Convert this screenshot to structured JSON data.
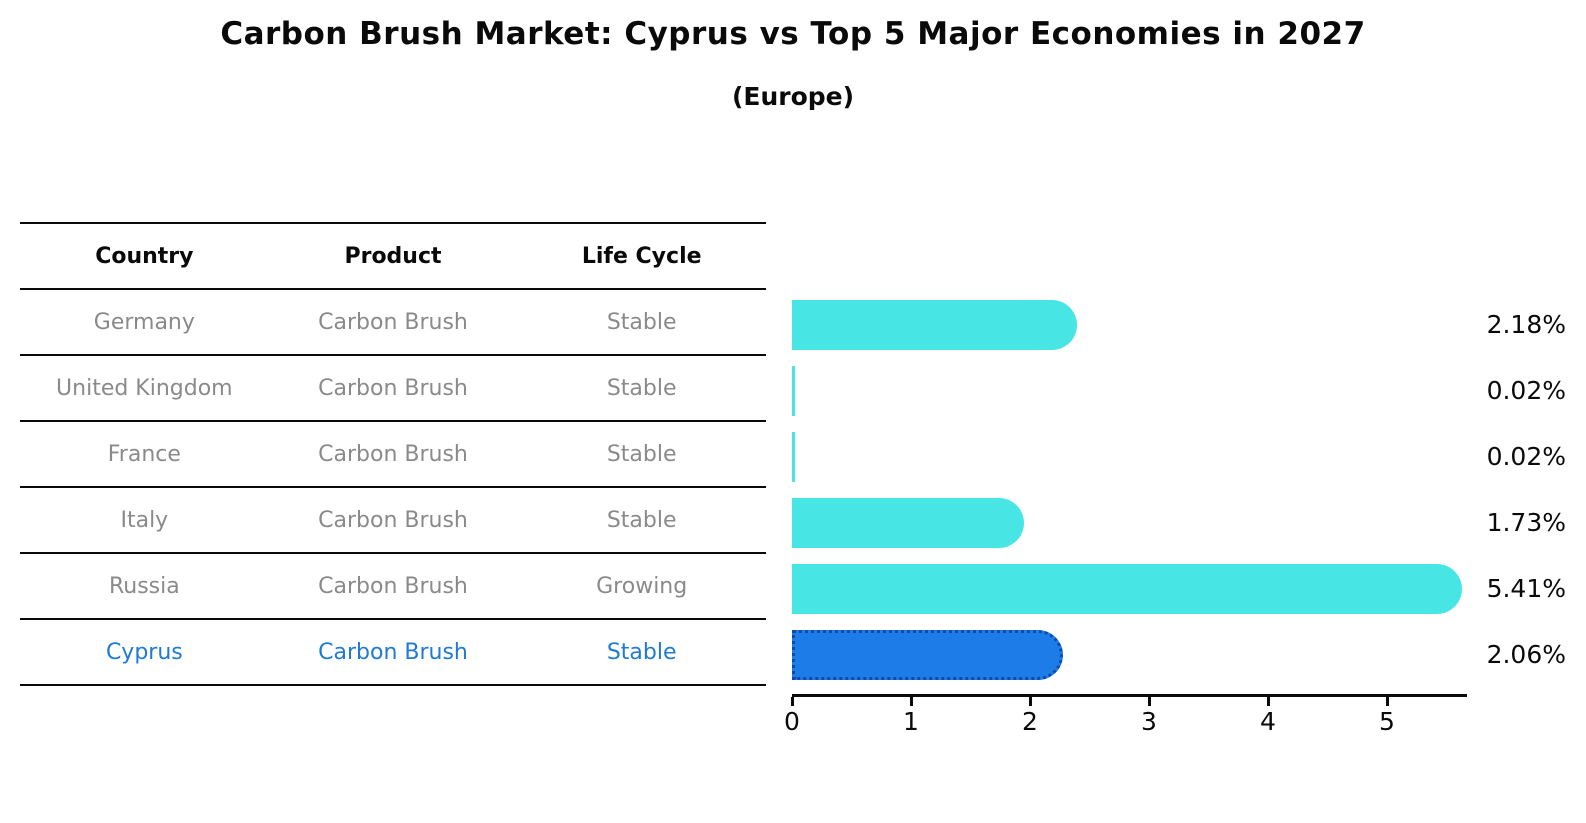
{
  "header": {
    "title": "Carbon Brush Market: Cyprus vs Top 5 Major Economies in 2027",
    "subtitle": "(Europe)"
  },
  "table": {
    "columns": [
      "Country",
      "Product",
      "Life Cycle"
    ],
    "rows": [
      {
        "country": "Germany",
        "product": "Carbon Brush",
        "life_cycle": "Stable",
        "highlighted": false
      },
      {
        "country": "United Kingdom",
        "product": "Carbon Brush",
        "life_cycle": "Stable",
        "highlighted": false
      },
      {
        "country": "France",
        "product": "Carbon Brush",
        "life_cycle": "Stable",
        "highlighted": false
      },
      {
        "country": "Italy",
        "product": "Carbon Brush",
        "life_cycle": "Stable",
        "highlighted": false
      },
      {
        "country": "Russia",
        "product": "Carbon Brush",
        "life_cycle": "Growing",
        "highlighted": false
      },
      {
        "country": "Cyprus",
        "product": "Carbon Brush",
        "life_cycle": "Stable",
        "highlighted": true
      }
    ]
  },
  "chart_data": {
    "type": "bar",
    "orientation": "horizontal",
    "title": "Carbon Brush Market: Cyprus vs Top 5 Major Economies in 2027 (Europe)",
    "categories": [
      "Germany",
      "United Kingdom",
      "France",
      "Italy",
      "Russia",
      "Cyprus"
    ],
    "values": [
      2.18,
      0.02,
      0.02,
      1.73,
      5.41,
      2.06
    ],
    "value_labels": [
      "2.18%",
      "0.02%",
      "0.02%",
      "1.73%",
      "5.41%",
      "2.06%"
    ],
    "xticks": [
      "0",
      "1",
      "2",
      "3",
      "4",
      "5"
    ],
    "xlim": [
      0,
      5.67
    ],
    "grid": false,
    "legend": false,
    "highlight_index": 5,
    "colors": {
      "bar": "#47e6e4",
      "highlight_fill": "#1e7ce8",
      "highlight_border": "#0a4ca8",
      "highlight_text": "#1f7ad6",
      "row_text": "#8a8a8a",
      "axis_text": "#0a0a0a"
    }
  }
}
